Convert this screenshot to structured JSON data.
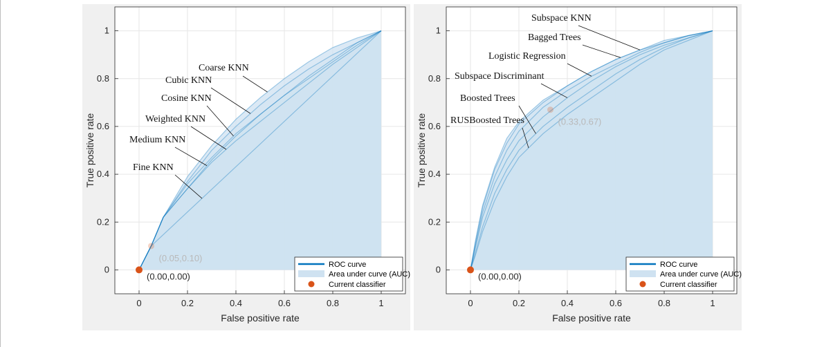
{
  "colors": {
    "roc_line": "#0072BD",
    "auc_fill": "#cfe2f1",
    "current_classifier": "#D95319",
    "figure_background": "#f0f0f0",
    "axes_background": "#ffffff",
    "grid": "#e6e6e6"
  },
  "chart_data": [
    {
      "type": "area",
      "title": "",
      "xlabel": "False positive rate",
      "ylabel": "True positive rate",
      "xlim": [
        -0.1,
        1.1
      ],
      "ylim": [
        -0.1,
        1.1
      ],
      "x_ticks": [
        0,
        0.2,
        0.4,
        0.6,
        0.8,
        1
      ],
      "y_ticks": [
        0,
        0.2,
        0.4,
        0.6,
        0.8,
        1
      ],
      "x_tick_labels": [
        "0",
        "0.2",
        "0.4",
        "0.6",
        "0.8",
        "1"
      ],
      "y_tick_labels": [
        "0",
        "0.2",
        "0.4",
        "0.6",
        "0.8",
        "1"
      ],
      "grid": true,
      "legend_position": "bottom-right",
      "legend": [
        "ROC curve",
        "Area under curve (AUC)",
        "Current classifier"
      ],
      "series": [
        {
          "name": "Coarse KNN",
          "x": [
            0,
            0.05,
            0.1,
            0.2,
            0.3,
            0.4,
            0.5,
            0.6,
            0.7,
            0.8,
            0.9,
            1
          ],
          "y": [
            0,
            0.1,
            0.22,
            0.39,
            0.52,
            0.63,
            0.72,
            0.8,
            0.87,
            0.93,
            0.97,
            1
          ]
        },
        {
          "name": "Cubic KNN",
          "x": [
            0,
            0.05,
            0.1,
            0.2,
            0.3,
            0.4,
            0.5,
            0.6,
            0.7,
            0.8,
            0.9,
            1
          ],
          "y": [
            0,
            0.1,
            0.22,
            0.37,
            0.5,
            0.6,
            0.69,
            0.77,
            0.84,
            0.9,
            0.95,
            1
          ]
        },
        {
          "name": "Cosine KNN",
          "x": [
            0,
            0.05,
            0.1,
            0.2,
            0.3,
            0.4,
            0.5,
            0.6,
            0.7,
            0.8,
            0.9,
            1
          ],
          "y": [
            0,
            0.1,
            0.22,
            0.36,
            0.47,
            0.57,
            0.65,
            0.73,
            0.8,
            0.87,
            0.94,
            1
          ]
        },
        {
          "name": "Weighted KNN",
          "x": [
            0,
            0.05,
            0.1,
            0.2,
            0.3,
            0.4,
            0.5,
            0.6,
            0.7,
            0.8,
            0.9,
            1
          ],
          "y": [
            0,
            0.1,
            0.22,
            0.34,
            0.45,
            0.54,
            0.62,
            0.7,
            0.78,
            0.86,
            0.93,
            1
          ]
        },
        {
          "name": "Medium KNN",
          "x": [
            0,
            0.05,
            0.1,
            0.2,
            0.3,
            0.4,
            0.5,
            0.6,
            0.7,
            0.8,
            0.9,
            1
          ],
          "y": [
            0,
            0.1,
            0.22,
            0.34,
            0.46,
            0.56,
            0.65,
            0.73,
            0.81,
            0.88,
            0.95,
            1
          ]
        },
        {
          "name": "Fine KNN",
          "x": [
            0,
            0.05,
            1
          ],
          "y": [
            0,
            0.1,
            1
          ]
        }
      ],
      "current_classifier": {
        "x": 0,
        "y": 0,
        "label": "(0.00,0.00)"
      },
      "faded_points": [
        {
          "x": 0.05,
          "y": 0.1,
          "label": "(0.05,0.10)"
        }
      ]
    },
    {
      "type": "area",
      "title": "",
      "xlabel": "False positive rate",
      "ylabel": "True positive rate",
      "xlim": [
        -0.1,
        1.1
      ],
      "ylim": [
        -0.1,
        1.1
      ],
      "x_ticks": [
        0,
        0.2,
        0.4,
        0.6,
        0.8,
        1
      ],
      "y_ticks": [
        0,
        0.2,
        0.4,
        0.6,
        0.8,
        1
      ],
      "x_tick_labels": [
        "0",
        "0.2",
        "0.4",
        "0.6",
        "0.8",
        "1"
      ],
      "y_tick_labels": [
        "0",
        "0.2",
        "0.4",
        "0.6",
        "0.8",
        "1"
      ],
      "grid": true,
      "legend_position": "bottom-right",
      "legend": [
        "ROC curve",
        "Area under curve (AUC)",
        "Current classifier"
      ],
      "series": [
        {
          "name": "Subspace KNN",
          "x": [
            0,
            0.02,
            0.05,
            0.1,
            0.15,
            0.2,
            0.3,
            0.4,
            0.5,
            0.6,
            0.7,
            0.8,
            0.9,
            1
          ],
          "y": [
            0,
            0.12,
            0.27,
            0.43,
            0.55,
            0.62,
            0.71,
            0.77,
            0.83,
            0.88,
            0.92,
            0.96,
            0.98,
            1
          ]
        },
        {
          "name": "Bagged Trees",
          "x": [
            0,
            0.02,
            0.05,
            0.1,
            0.15,
            0.2,
            0.3,
            0.4,
            0.5,
            0.6,
            0.7,
            0.8,
            0.9,
            1
          ],
          "y": [
            0,
            0.11,
            0.26,
            0.42,
            0.53,
            0.61,
            0.7,
            0.77,
            0.83,
            0.88,
            0.92,
            0.95,
            0.98,
            1
          ]
        },
        {
          "name": "Logistic Regression",
          "x": [
            0,
            0.02,
            0.05,
            0.1,
            0.15,
            0.2,
            0.3,
            0.4,
            0.5,
            0.6,
            0.7,
            0.8,
            0.9,
            1
          ],
          "y": [
            0,
            0.1,
            0.24,
            0.39,
            0.5,
            0.58,
            0.68,
            0.75,
            0.81,
            0.86,
            0.91,
            0.95,
            0.98,
            1
          ]
        },
        {
          "name": "Subspace Discriminant",
          "x": [
            0,
            0.02,
            0.05,
            0.1,
            0.15,
            0.2,
            0.3,
            0.4,
            0.5,
            0.6,
            0.7,
            0.8,
            0.9,
            1
          ],
          "y": [
            0,
            0.09,
            0.22,
            0.36,
            0.46,
            0.54,
            0.64,
            0.72,
            0.79,
            0.85,
            0.9,
            0.94,
            0.97,
            1
          ]
        },
        {
          "name": "Boosted Trees",
          "x": [
            0,
            0.02,
            0.05,
            0.1,
            0.15,
            0.2,
            0.3,
            0.4,
            0.5,
            0.6,
            0.7,
            0.8,
            0.9,
            1
          ],
          "y": [
            0,
            0.07,
            0.18,
            0.32,
            0.42,
            0.5,
            0.6,
            0.68,
            0.75,
            0.82,
            0.88,
            0.93,
            0.97,
            1
          ]
        },
        {
          "name": "RUSBoosted Trees",
          "x": [
            0,
            0.02,
            0.05,
            0.1,
            0.15,
            0.2,
            0.3,
            0.4,
            0.5,
            0.6,
            0.7,
            0.8,
            0.9,
            1
          ],
          "y": [
            0,
            0.06,
            0.16,
            0.29,
            0.39,
            0.47,
            0.57,
            0.65,
            0.72,
            0.79,
            0.86,
            0.92,
            0.96,
            1
          ]
        }
      ],
      "current_classifier": {
        "x": 0,
        "y": 0,
        "label": "(0.00,0.00)"
      },
      "faded_points": [
        {
          "x": 0.33,
          "y": 0.67,
          "label": "(0.33,0.67)"
        }
      ]
    }
  ]
}
